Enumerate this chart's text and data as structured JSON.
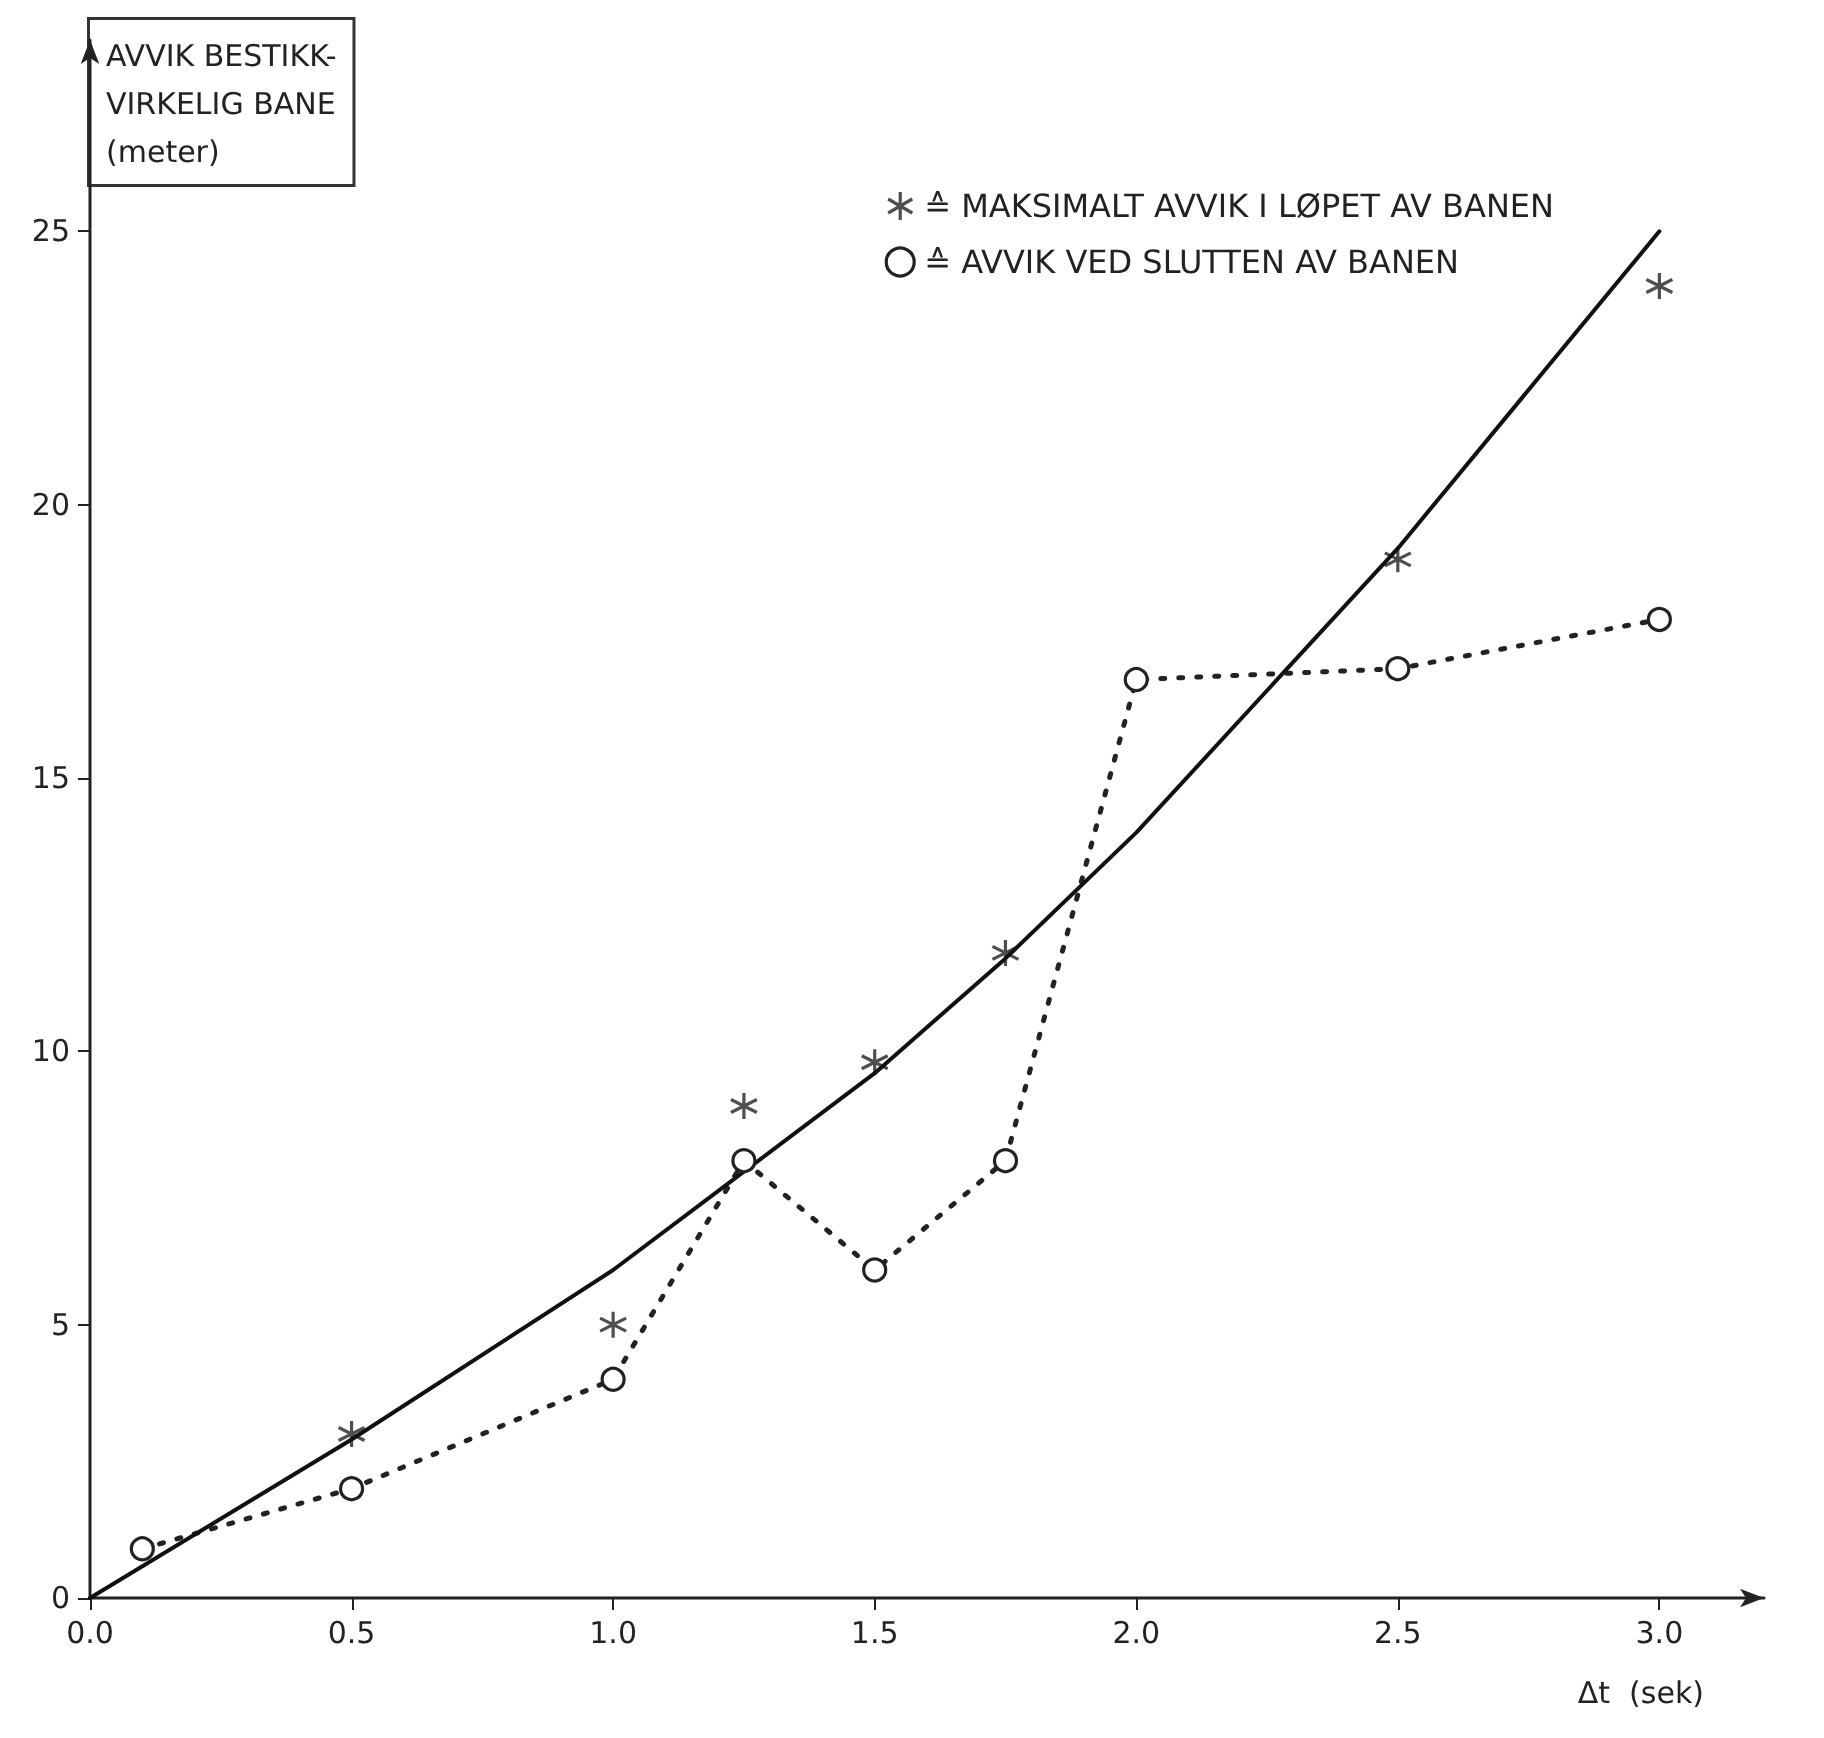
{
  "chart_data": {
    "type": "scatter",
    "ylabel": "AVVIK BESTIKK-\nVIRKELIG BANE\n(meter)",
    "xlabel": "Δt  (sek)",
    "xlim": [
      0,
      3.2
    ],
    "xticks": [
      {
        "value": 0,
        "label": "0.0"
      },
      {
        "value": 0.5,
        "label": "0.5"
      },
      {
        "value": 1,
        "label": "1.0"
      },
      {
        "value": 1.5,
        "label": "1.5"
      },
      {
        "value": 2,
        "label": "2.0"
      },
      {
        "value": 2.5,
        "label": "2.5"
      },
      {
        "value": 3,
        "label": "3.0"
      }
    ],
    "ylim": [
      0,
      28.5
    ],
    "yticks": [
      0,
      5,
      10,
      15,
      20,
      25
    ],
    "grid": false,
    "legend": "top right",
    "series": [
      {
        "name": "≙ MAKSIMALT AVVIK I LØPET AV BANEN",
        "marker": "cross",
        "color": "#222222",
        "x": [
          0.5,
          1.0,
          1.25,
          1.5,
          1.75,
          2.5,
          3.0
        ],
        "values": [
          3,
          5,
          9,
          9.8,
          11.8,
          19,
          24
        ]
      },
      {
        "name": "≙ AVVIK VED SLUTTEN AV BANEN",
        "type": "line",
        "marker": "circle",
        "line_style": "dotted",
        "color": "#222222",
        "x": [
          0.1,
          0.5,
          1.0,
          1.25,
          1.5,
          1.75,
          2.0,
          2.5,
          3.0
        ],
        "values": [
          0.9,
          2,
          4,
          8,
          6,
          8,
          16.8,
          17,
          17.9
        ]
      },
      {
        "type": "line",
        "marker": "none",
        "line_style": "solid",
        "color": "#111111",
        "x": [
          0,
          0.5,
          1.0,
          1.25,
          1.5,
          1.75,
          2.0,
          2.5,
          3.0
        ],
        "values": [
          0,
          2.9,
          6.0,
          7.8,
          9.6,
          11.7,
          14,
          19.2,
          25
        ]
      }
    ]
  }
}
